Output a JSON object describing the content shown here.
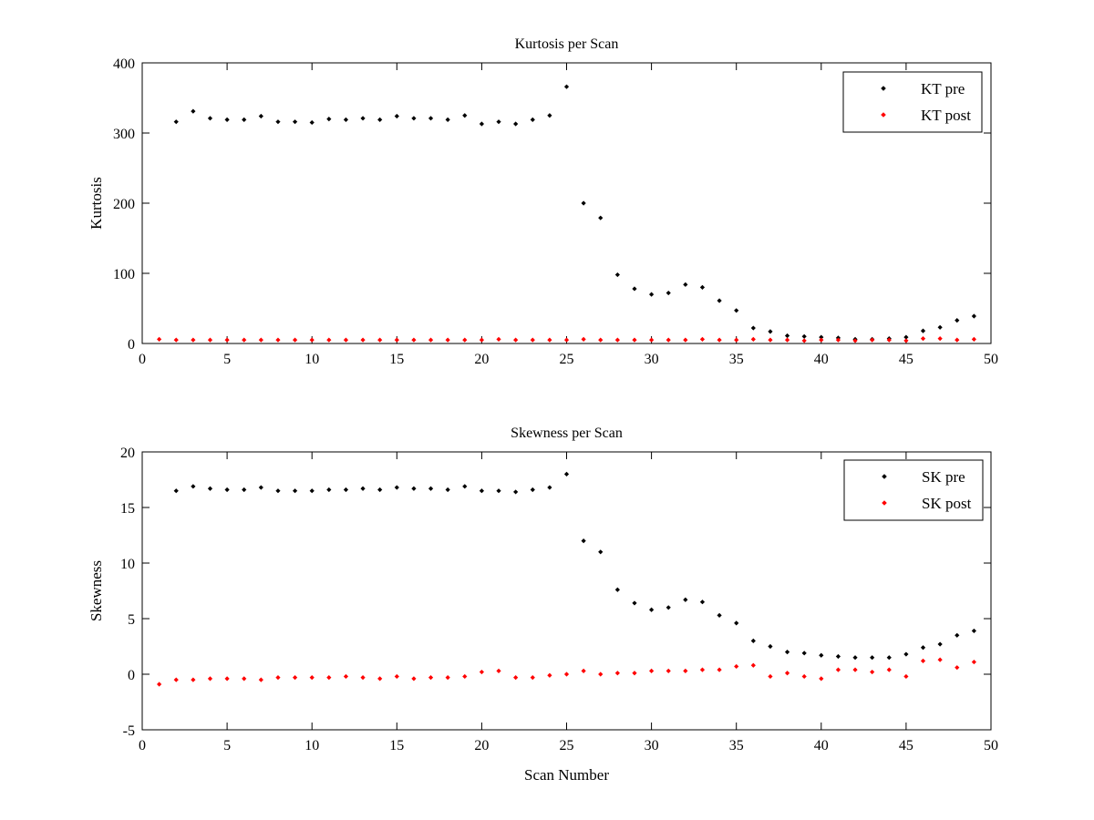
{
  "chart_data": [
    {
      "type": "scatter",
      "title": "Kurtosis per Scan",
      "xlabel": "",
      "ylabel": "Kurtosis",
      "xlim": [
        0,
        50
      ],
      "ylim": [
        0,
        400
      ],
      "xticks": [
        0,
        5,
        10,
        15,
        20,
        25,
        30,
        35,
        40,
        45,
        50
      ],
      "yticks": [
        0,
        100,
        200,
        300,
        400
      ],
      "grid": false,
      "legend_position": "top-right",
      "series": [
        {
          "name": "KT pre",
          "color": "#000000",
          "x": [
            2,
            3,
            4,
            5,
            6,
            7,
            8,
            9,
            10,
            11,
            12,
            13,
            14,
            15,
            16,
            17,
            18,
            19,
            20,
            21,
            22,
            23,
            24,
            25,
            26,
            27,
            28,
            29,
            30,
            31,
            32,
            33,
            34,
            35,
            36,
            37,
            38,
            39,
            40,
            41,
            42,
            43,
            44,
            45,
            46,
            47,
            48,
            49
          ],
          "y": [
            316,
            331,
            321,
            319,
            319,
            324,
            316,
            316,
            315,
            320,
            319,
            321,
            319,
            324,
            321,
            321,
            319,
            325,
            313,
            316,
            313,
            319,
            325,
            366,
            200,
            179,
            98,
            78,
            70,
            72,
            84,
            80,
            61,
            47,
            22,
            17,
            11,
            10,
            9,
            8,
            6,
            6,
            7,
            9,
            18,
            23,
            33,
            39
          ]
        },
        {
          "name": "KT post",
          "color": "#ff0000",
          "x": [
            1,
            2,
            3,
            4,
            5,
            6,
            7,
            8,
            9,
            10,
            11,
            12,
            13,
            14,
            15,
            16,
            17,
            18,
            19,
            20,
            21,
            22,
            23,
            24,
            25,
            26,
            27,
            28,
            29,
            30,
            31,
            32,
            33,
            34,
            35,
            36,
            37,
            38,
            39,
            40,
            41,
            42,
            43,
            44,
            45,
            46,
            47,
            48,
            49
          ],
          "y": [
            6,
            5,
            5,
            5,
            5,
            5,
            5,
            5,
            5,
            5,
            5,
            5,
            5,
            5,
            5,
            5,
            5,
            5,
            5,
            5,
            6,
            5,
            5,
            5,
            5,
            6,
            5,
            5,
            5,
            5,
            5,
            5,
            6,
            5,
            5,
            6,
            5,
            5,
            4,
            5,
            5,
            4,
            5,
            5,
            4,
            7,
            7,
            5,
            6
          ]
        }
      ]
    },
    {
      "type": "scatter",
      "title": "Skewness per Scan",
      "xlabel": "Scan Number",
      "ylabel": "Skewness",
      "xlim": [
        0,
        50
      ],
      "ylim": [
        -5,
        20
      ],
      "xticks": [
        0,
        5,
        10,
        15,
        20,
        25,
        30,
        35,
        40,
        45,
        50
      ],
      "yticks": [
        -5,
        0,
        5,
        10,
        15,
        20
      ],
      "grid": false,
      "legend_position": "top-right",
      "series": [
        {
          "name": "SK pre",
          "color": "#000000",
          "x": [
            2,
            3,
            4,
            5,
            6,
            7,
            8,
            9,
            10,
            11,
            12,
            13,
            14,
            15,
            16,
            17,
            18,
            19,
            20,
            21,
            22,
            23,
            24,
            25,
            26,
            27,
            28,
            29,
            30,
            31,
            32,
            33,
            34,
            35,
            36,
            37,
            38,
            39,
            40,
            41,
            42,
            43,
            44,
            45,
            46,
            47,
            48,
            49
          ],
          "y": [
            16.5,
            16.9,
            16.7,
            16.6,
            16.6,
            16.8,
            16.5,
            16.5,
            16.5,
            16.6,
            16.6,
            16.7,
            16.6,
            16.8,
            16.7,
            16.7,
            16.6,
            16.9,
            16.5,
            16.5,
            16.4,
            16.6,
            16.8,
            18.0,
            12.0,
            11.0,
            7.6,
            6.4,
            5.8,
            6.0,
            6.7,
            6.5,
            5.3,
            4.6,
            3.0,
            2.5,
            2.0,
            1.9,
            1.7,
            1.6,
            1.5,
            1.5,
            1.5,
            1.8,
            2.4,
            2.7,
            3.5,
            3.9
          ]
        },
        {
          "name": "SK post",
          "color": "#ff0000",
          "x": [
            1,
            2,
            3,
            4,
            5,
            6,
            7,
            8,
            9,
            10,
            11,
            12,
            13,
            14,
            15,
            16,
            17,
            18,
            19,
            20,
            21,
            22,
            23,
            24,
            25,
            26,
            27,
            28,
            29,
            30,
            31,
            32,
            33,
            34,
            35,
            36,
            37,
            38,
            39,
            40,
            41,
            42,
            43,
            44,
            45,
            46,
            47,
            48,
            49
          ],
          "y": [
            -0.9,
            -0.5,
            -0.5,
            -0.4,
            -0.4,
            -0.4,
            -0.5,
            -0.3,
            -0.3,
            -0.3,
            -0.3,
            -0.2,
            -0.3,
            -0.4,
            -0.2,
            -0.4,
            -0.3,
            -0.3,
            -0.2,
            0.2,
            0.3,
            -0.3,
            -0.3,
            -0.1,
            0.0,
            0.3,
            0.0,
            0.1,
            0.1,
            0.3,
            0.3,
            0.3,
            0.4,
            0.4,
            0.7,
            0.8,
            -0.2,
            0.1,
            -0.2,
            -0.4,
            0.4,
            0.4,
            0.2,
            0.4,
            -0.2,
            1.2,
            1.3,
            0.6,
            1.1
          ]
        }
      ]
    }
  ]
}
